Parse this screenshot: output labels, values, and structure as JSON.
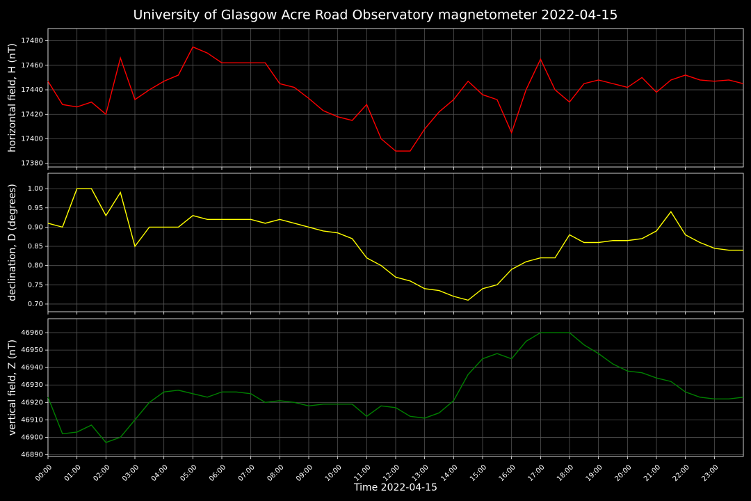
{
  "title": "University of Glasgow Acre Road Observatory magnetometer 2022-04-15",
  "chart_data": [
    {
      "type": "line",
      "ylabel": "horizontal field, H (nT)",
      "x": [
        0,
        0.5,
        1,
        1.5,
        2,
        2.5,
        3,
        3.5,
        4,
        4.5,
        5,
        5.5,
        6,
        6.5,
        7,
        7.5,
        8,
        8.5,
        9,
        9.5,
        10,
        10.5,
        11,
        11.5,
        12,
        12.5,
        13,
        13.5,
        14,
        14.5,
        15,
        15.5,
        16,
        16.5,
        17,
        17.5,
        18,
        18.5,
        19,
        19.5,
        20,
        20.5,
        21,
        21.5,
        22,
        22.5,
        23,
        23.5,
        24
      ],
      "series": [
        {
          "color": "#ff0000",
          "values": [
            17447,
            17428,
            17426,
            17430,
            17420,
            17466,
            17432,
            17440,
            17447,
            17452,
            17475,
            17470,
            17462,
            17462,
            17462,
            17462,
            17445,
            17442,
            17433,
            17423,
            17418,
            17415,
            17428,
            17400,
            17390,
            17390,
            17408,
            17422,
            17432,
            17447,
            17436,
            17432,
            17405,
            17440,
            17465,
            17440,
            17430,
            17445,
            17448,
            17445,
            17442,
            17450,
            17438,
            17448,
            17452,
            17448,
            17447,
            17448,
            17445
          ]
        }
      ],
      "xlim": [
        0,
        24
      ],
      "ylim": [
        17377,
        17490
      ],
      "yticks": [
        17380,
        17400,
        17420,
        17440,
        17460,
        17480
      ],
      "grid": true
    },
    {
      "type": "line",
      "ylabel": "declination, D (degrees)",
      "x": [
        0,
        0.5,
        1,
        1.5,
        2,
        2.5,
        3,
        3.5,
        4,
        4.5,
        5,
        5.5,
        6,
        6.5,
        7,
        7.5,
        8,
        8.5,
        9,
        9.5,
        10,
        10.5,
        11,
        11.5,
        12,
        12.5,
        13,
        13.5,
        14,
        14.5,
        15,
        15.5,
        16,
        16.5,
        17,
        17.5,
        18,
        18.5,
        19,
        19.5,
        20,
        20.5,
        21,
        21.5,
        22,
        22.5,
        23,
        23.5,
        24
      ],
      "series": [
        {
          "color": "#ffff00",
          "values": [
            0.91,
            0.9,
            1.0,
            1.0,
            0.93,
            0.99,
            0.85,
            0.9,
            0.9,
            0.9,
            0.93,
            0.92,
            0.92,
            0.92,
            0.92,
            0.91,
            0.92,
            0.91,
            0.9,
            0.89,
            0.885,
            0.87,
            0.82,
            0.8,
            0.77,
            0.76,
            0.74,
            0.735,
            0.72,
            0.71,
            0.74,
            0.75,
            0.79,
            0.81,
            0.82,
            0.82,
            0.88,
            0.86,
            0.86,
            0.865,
            0.865,
            0.87,
            0.89,
            0.94,
            0.88,
            0.86,
            0.845,
            0.84,
            0.84
          ]
        }
      ],
      "xlim": [
        0,
        24
      ],
      "ylim": [
        0.68,
        1.04
      ],
      "yticks": [
        {
          "value": 0.7,
          "label": "0.70"
        },
        0.75,
        {
          "value": 0.8,
          "label": "0.80"
        },
        0.85,
        {
          "value": 0.9,
          "label": "0.90"
        },
        0.95,
        {
          "value": 1,
          "label": "1.00"
        }
      ],
      "grid": true
    },
    {
      "type": "line",
      "ylabel": "vertical field, Z (nT)",
      "xlabel": "Time 2022-04-15",
      "x": [
        0,
        0.5,
        1,
        1.5,
        2,
        2.5,
        3,
        3.5,
        4,
        4.5,
        5,
        5.5,
        6,
        6.5,
        7,
        7.5,
        8,
        8.5,
        9,
        9.5,
        10,
        10.5,
        11,
        11.5,
        12,
        12.5,
        13,
        13.5,
        14,
        14.5,
        15,
        15.5,
        16,
        16.5,
        17,
        17.5,
        18,
        18.5,
        19,
        19.5,
        20,
        20.5,
        21,
        21.5,
        22,
        22.5,
        23,
        23.5,
        24
      ],
      "series": [
        {
          "color": "#008000",
          "values": [
            46923,
            46902,
            46903,
            46907,
            46897,
            46900,
            46910,
            46920,
            46926,
            46927,
            46925,
            46923,
            46926,
            46926,
            46925,
            46920,
            46921,
            46920,
            46918,
            46919,
            46919,
            46919,
            46912,
            46918,
            46917,
            46912,
            46911,
            46914,
            46921,
            46936,
            46945,
            46948,
            46945,
            46955,
            46960,
            46960,
            46960,
            46953,
            46948,
            46942,
            46938,
            46937,
            46934,
            46932,
            46926,
            46923,
            46922,
            46922,
            46923
          ]
        }
      ],
      "xlim": [
        0,
        24
      ],
      "ylim": [
        46889,
        46968
      ],
      "yticks": [
        46890,
        46900,
        46910,
        46920,
        46930,
        46940,
        46950,
        46960
      ],
      "xticks": [
        {
          "value": 0,
          "label": "00:00"
        },
        {
          "value": 1,
          "label": "01:00"
        },
        {
          "value": 2,
          "label": "02:00"
        },
        {
          "value": 3,
          "label": "03:00"
        },
        {
          "value": 4,
          "label": "04:00"
        },
        {
          "value": 5,
          "label": "05:00"
        },
        {
          "value": 6,
          "label": "06:00"
        },
        {
          "value": 7,
          "label": "07:00"
        },
        {
          "value": 8,
          "label": "08:00"
        },
        {
          "value": 9,
          "label": "09:00"
        },
        {
          "value": 10,
          "label": "10:00"
        },
        {
          "value": 11,
          "label": "11:00"
        },
        {
          "value": 12,
          "label": "12:00"
        },
        {
          "value": 13,
          "label": "13:00"
        },
        {
          "value": 14,
          "label": "14:00"
        },
        {
          "value": 15,
          "label": "15:00"
        },
        {
          "value": 16,
          "label": "16:00"
        },
        {
          "value": 17,
          "label": "17:00"
        },
        {
          "value": 18,
          "label": "18:00"
        },
        {
          "value": 19,
          "label": "19:00"
        },
        {
          "value": 20,
          "label": "20:00"
        },
        {
          "value": 21,
          "label": "21:00"
        },
        {
          "value": 22,
          "label": "22:00"
        },
        {
          "value": 23,
          "label": "23:00"
        }
      ],
      "grid": true
    }
  ]
}
